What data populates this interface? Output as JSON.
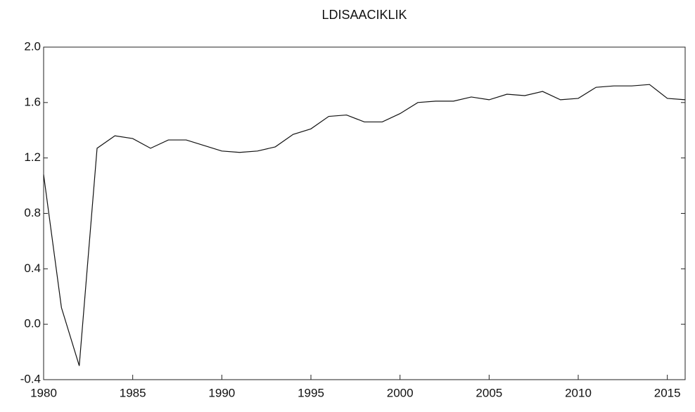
{
  "chart_data": {
    "type": "line",
    "title": "LDISAACIKLIK",
    "x": [
      1980,
      1981,
      1982,
      1983,
      1984,
      1985,
      1986,
      1987,
      1988,
      1989,
      1990,
      1991,
      1992,
      1993,
      1994,
      1995,
      1996,
      1997,
      1998,
      1999,
      2000,
      2001,
      2002,
      2003,
      2004,
      2005,
      2006,
      2007,
      2008,
      2009,
      2010,
      2011,
      2012,
      2013,
      2014,
      2015,
      2016
    ],
    "series": [
      {
        "name": "LDISAACIKLIK",
        "color": "#111111",
        "values": [
          1.08,
          0.12,
          -0.3,
          1.27,
          1.36,
          1.34,
          1.27,
          1.33,
          1.33,
          1.29,
          1.25,
          1.24,
          1.25,
          1.28,
          1.37,
          1.41,
          1.5,
          1.51,
          1.46,
          1.46,
          1.52,
          1.6,
          1.61,
          1.61,
          1.64,
          1.62,
          1.66,
          1.65,
          1.68,
          1.62,
          1.63,
          1.71,
          1.72,
          1.72,
          1.73,
          1.63,
          1.62
        ]
      }
    ],
    "xlim": [
      1980,
      2016
    ],
    "xticks": [
      1980,
      1985,
      1990,
      1995,
      2000,
      2005,
      2010,
      2015
    ],
    "ylim": [
      -0.4,
      2.0
    ],
    "yticks": [
      -0.4,
      {
        "value": 0,
        "label": "0.0"
      },
      0.4,
      0.8,
      1.2,
      1.6,
      {
        "value": 2,
        "label": "2.0"
      }
    ],
    "grid": false
  }
}
